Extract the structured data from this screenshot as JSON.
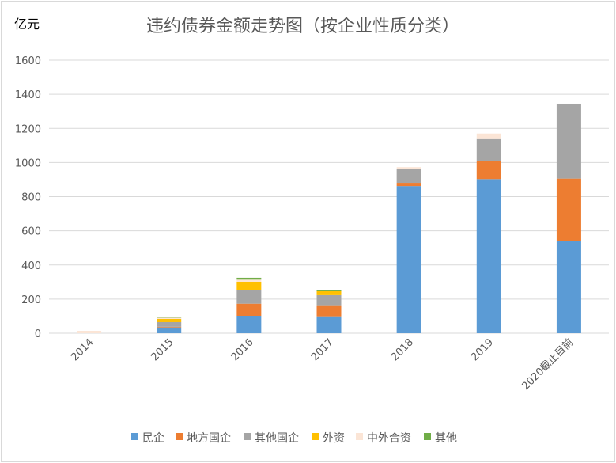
{
  "chart_data": {
    "type": "bar",
    "stacked": true,
    "title": "违约债券金额走势图（按企业性质分类）",
    "ylabel": "亿元",
    "xlabel": "",
    "categories": [
      "2014",
      "2015",
      "2016",
      "2017",
      "2018",
      "2019",
      "2020截止目前"
    ],
    "ylim": [
      0,
      1600
    ],
    "yticks": [
      0,
      200,
      400,
      600,
      800,
      1000,
      1200,
      1400,
      1600
    ],
    "grid": true,
    "legend_position": "bottom",
    "series": [
      {
        "name": "民企",
        "color": "#5b9bd5",
        "values": [
          0,
          34,
          102,
          99,
          862,
          903,
          538
        ]
      },
      {
        "name": "地方国企",
        "color": "#ed7d31",
        "values": [
          0,
          4,
          71,
          65,
          19,
          108,
          368
        ]
      },
      {
        "name": "其他国企",
        "color": "#a5a5a5",
        "values": [
          0,
          27,
          82,
          59,
          83,
          131,
          439
        ]
      },
      {
        "name": "外资",
        "color": "#ffc000",
        "values": [
          0,
          19,
          47,
          23,
          0,
          0,
          0
        ]
      },
      {
        "name": "中外合资",
        "color": "#fbe5d6",
        "values": [
          14,
          7,
          12,
          0,
          9,
          28,
          0
        ]
      },
      {
        "name": "其他",
        "color": "#70ad47",
        "values": [
          0,
          6,
          11,
          9,
          0,
          0,
          0
        ]
      }
    ]
  }
}
